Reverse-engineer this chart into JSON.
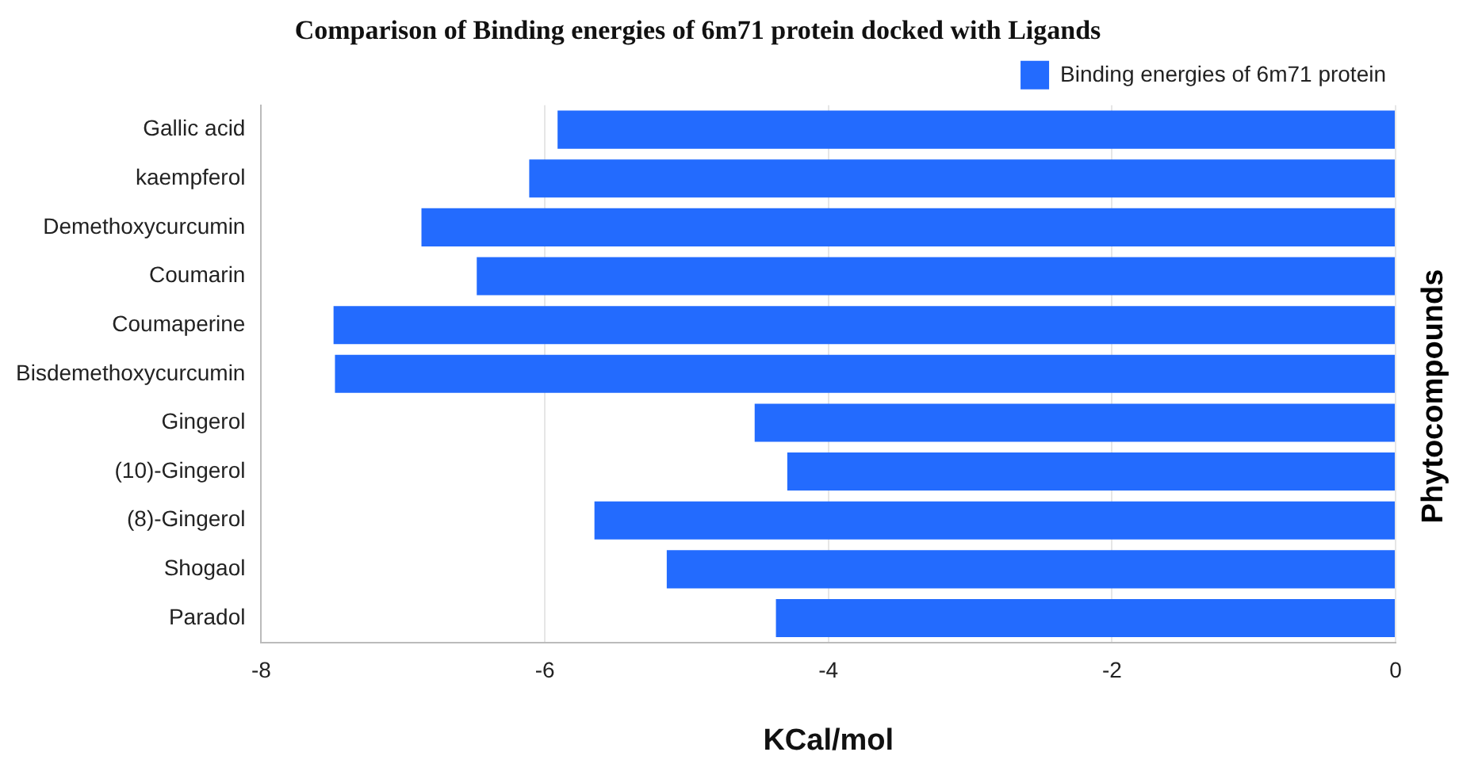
{
  "chart_data": {
    "type": "bar",
    "orientation": "horizontal",
    "title": "Comparison of Binding energies of 6m71 protein docked with Ligands",
    "xlabel": "KCal/mol",
    "ylabel": "Phytocompounds",
    "categories": [
      "Gallic acid",
      "kaempferol",
      "Demethoxycurcumin",
      "Coumarin",
      "Coumaperine",
      "Bisdemethoxycurcumin",
      "Gingerol",
      "(10)-Gingerol",
      "(8)-Gingerol",
      "Shogaol",
      "Paradol"
    ],
    "series": [
      {
        "name": "Binding energies of 6m71 protein",
        "color": "#236bfe",
        "values": [
          -5.91,
          -6.11,
          -6.87,
          -6.48,
          -7.49,
          -7.48,
          -4.52,
          -4.29,
          -5.65,
          -5.14,
          -4.37
        ]
      }
    ],
    "xlim": [
      -8,
      0
    ],
    "xticks": [
      -8,
      -6,
      -4,
      -2,
      0
    ],
    "grid": "x",
    "legend": "top right"
  }
}
